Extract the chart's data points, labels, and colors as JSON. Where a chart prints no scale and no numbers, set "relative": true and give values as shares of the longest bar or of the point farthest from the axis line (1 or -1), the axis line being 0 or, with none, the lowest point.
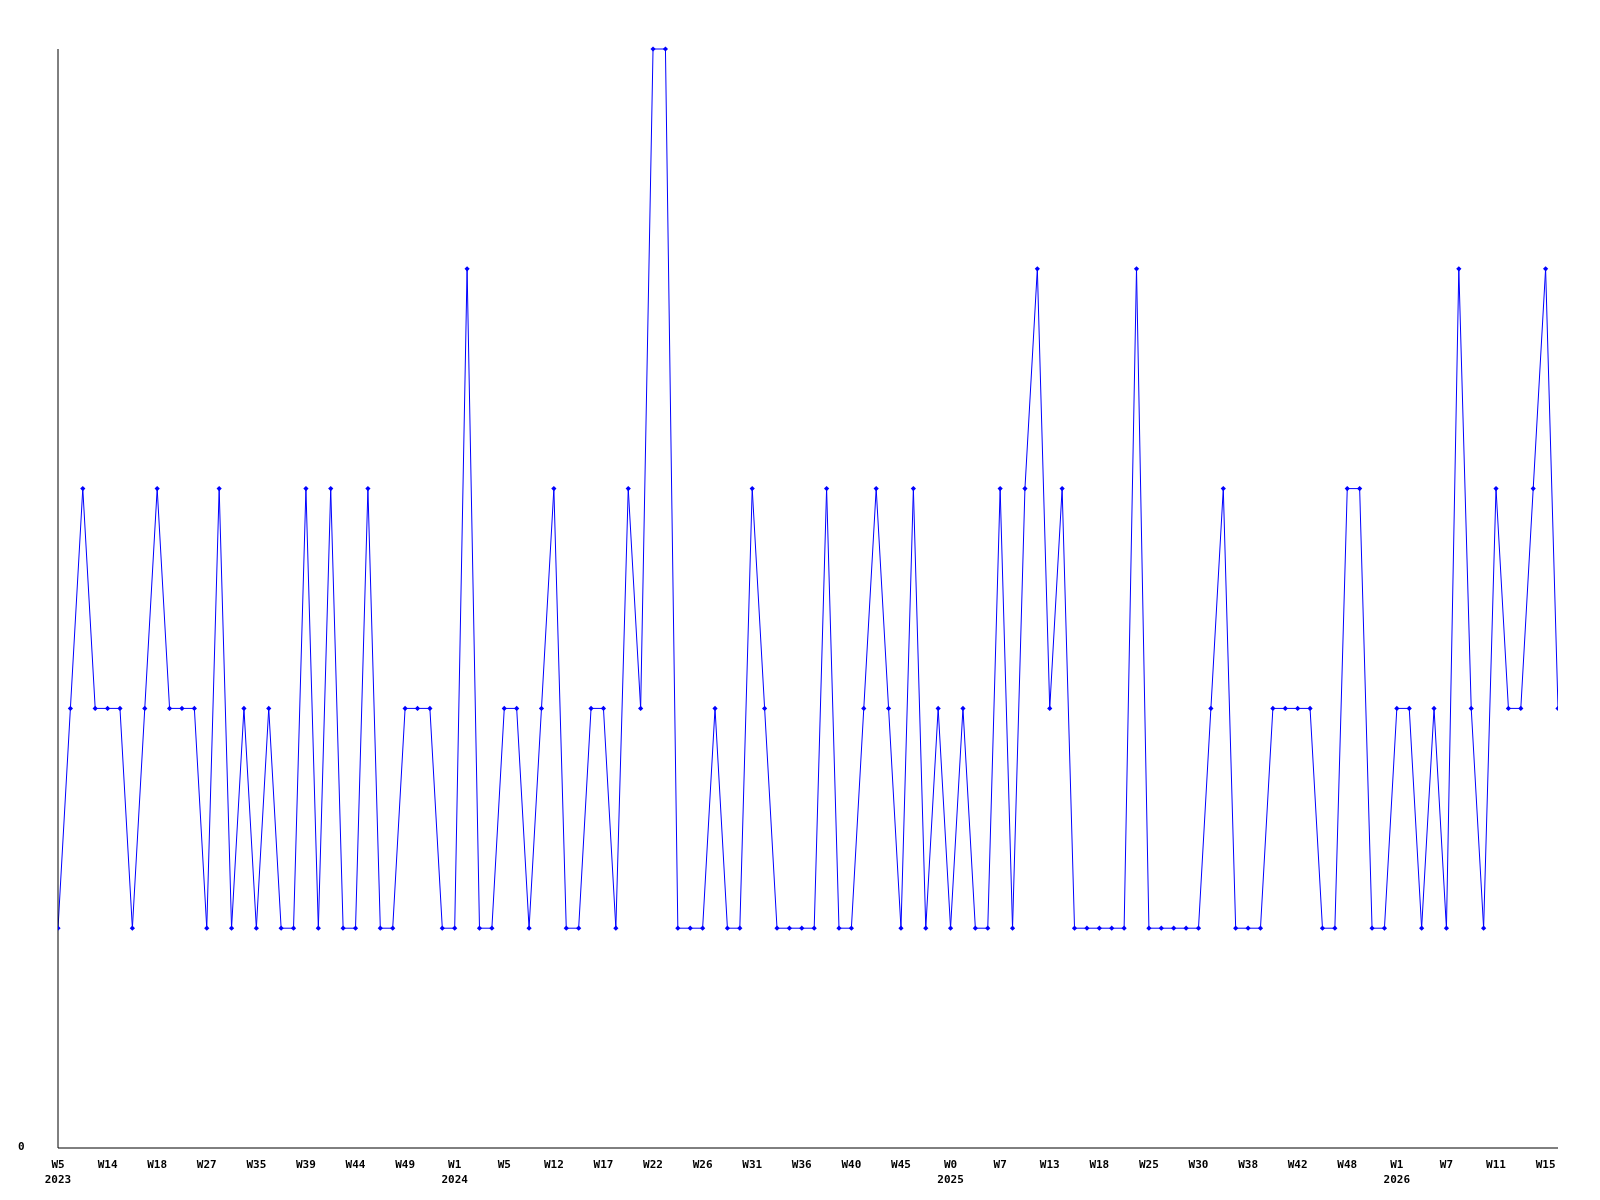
{
  "chart_data": {
    "type": "line",
    "relative": true,
    "marker": "diamond",
    "line_style": "solid",
    "annotations": [
      "0"
    ],
    "categories": [
      "W5\n2023",
      null,
      null,
      null,
      "W14",
      null,
      null,
      null,
      "W18",
      null,
      null,
      null,
      "W27",
      null,
      null,
      null,
      "W35",
      null,
      null,
      null,
      "W39",
      null,
      null,
      null,
      "W44",
      null,
      null,
      null,
      "W49",
      null,
      null,
      null,
      "W1\n2024",
      null,
      null,
      null,
      "W5",
      null,
      null,
      null,
      "W12",
      null,
      null,
      null,
      "W17",
      null,
      null,
      null,
      "W22",
      null,
      null,
      null,
      "W26",
      null,
      null,
      null,
      "W31",
      null,
      null,
      null,
      "W36",
      null,
      null,
      null,
      "W40",
      null,
      null,
      null,
      "W45",
      null,
      null,
      null,
      "W0\n2025",
      null,
      null,
      null,
      "W7",
      null,
      null,
      null,
      "W13",
      null,
      null,
      null,
      "W18",
      null,
      null,
      null,
      "W25",
      null,
      null,
      null,
      "W30",
      null,
      null,
      null,
      "W38",
      null,
      null,
      null,
      "W42",
      null,
      null,
      null,
      "W48",
      null,
      null,
      null,
      "W1\n2026",
      null,
      null,
      null,
      "W7",
      null,
      null,
      null,
      "W11",
      null,
      null,
      null,
      "W15",
      null
    ],
    "series": [
      {
        "color": "#0000ff",
        "values": [
          0.2,
          0.4,
          0.6,
          0.4,
          0.4,
          0.4,
          0.2,
          0.4,
          0.6,
          0.4,
          0.4,
          0.4,
          0.2,
          0.6,
          0.2,
          0.4,
          0.2,
          0.4,
          0.2,
          0.2,
          0.6,
          0.2,
          0.6,
          0.2,
          0.2,
          0.6,
          0.2,
          0.2,
          0.4,
          0.4,
          0.4,
          0.2,
          0.2,
          0.8,
          0.2,
          0.2,
          0.4,
          0.4,
          0.2,
          0.4,
          0.6,
          0.2,
          0.2,
          0.4,
          0.4,
          0.2,
          0.6,
          0.4,
          1,
          1,
          0.2,
          0.2,
          0.2,
          0.4,
          0.2,
          0.2,
          0.6,
          0.4,
          0.2,
          0.2,
          0.2,
          0.2,
          0.6,
          0.2,
          0.2,
          0.4,
          0.6,
          0.4,
          0.2,
          0.6,
          0.2,
          0.4,
          0.2,
          0.4,
          0.2,
          0.2,
          0.6,
          0.2,
          0.6,
          0.8,
          0.4,
          0.6,
          0.2,
          0.2,
          0.2,
          0.2,
          0.2,
          0.8,
          0.2,
          0.2,
          0.2,
          0.2,
          0.2,
          0.4,
          0.6,
          0.2,
          0.2,
          0.2,
          0.4,
          0.4,
          0.4,
          0.4,
          0.2,
          0.2,
          0.6,
          0.6,
          0.2,
          0.2,
          0.4,
          0.4,
          0.2,
          0.4,
          0.2,
          0.8,
          0.4,
          0.2,
          0.6,
          0.4,
          0.4,
          0.6,
          0.8,
          0.4
        ]
      }
    ]
  }
}
